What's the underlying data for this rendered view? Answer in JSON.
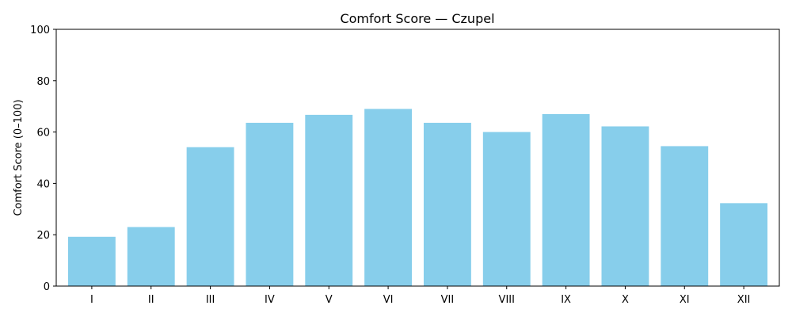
{
  "chart_data": {
    "type": "bar",
    "title": "Comfort Score — Czupel",
    "xlabel": "",
    "ylabel": "Comfort Score (0–100)",
    "categories": [
      "I",
      "II",
      "III",
      "IV",
      "V",
      "VI",
      "VII",
      "VIII",
      "IX",
      "X",
      "XI",
      "XII"
    ],
    "values": [
      19.2,
      23.0,
      54.1,
      63.6,
      66.7,
      69.0,
      63.6,
      60.0,
      67.0,
      62.2,
      54.5,
      32.3
    ],
    "ylim": [
      0,
      100
    ],
    "yticks": [
      "0",
      "20",
      "40",
      "60",
      "80",
      "100"
    ],
    "grid": false,
    "legend": "none",
    "bar_color": "#87ceeb"
  }
}
